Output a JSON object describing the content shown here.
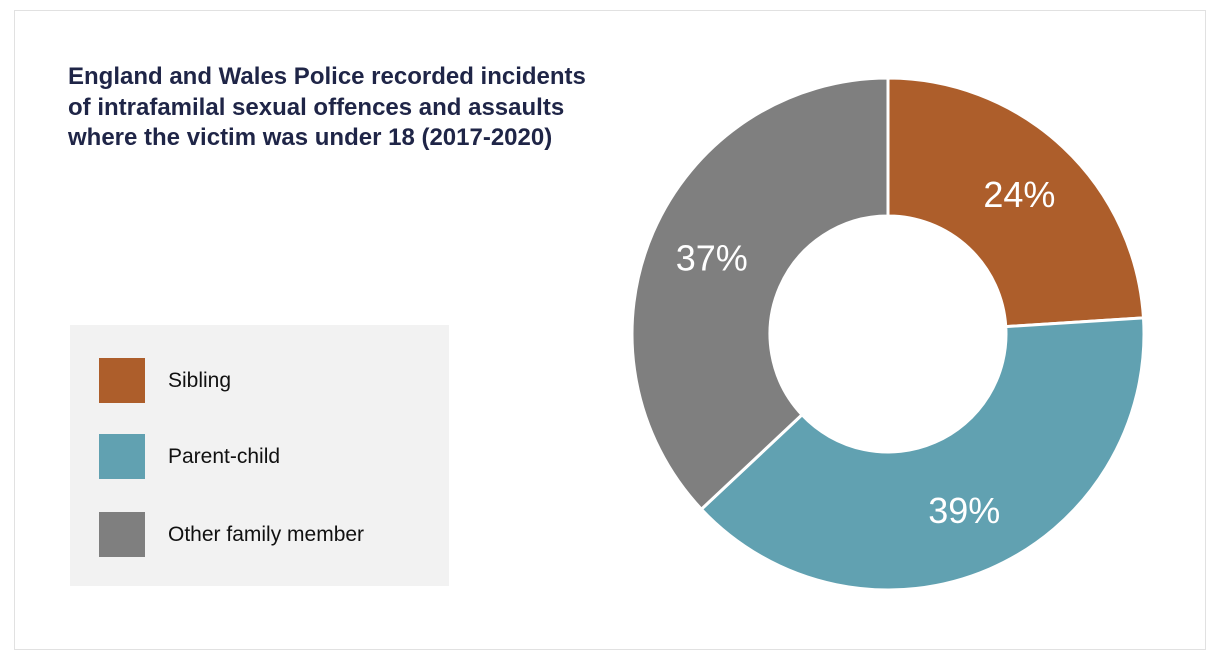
{
  "chart_data": {
    "type": "pie",
    "title": "England and Wales Police recorded incidents of intrafamilal sexual offences and assaults where the victim was under 18 (2017-2020)",
    "categories": [
      "Sibling",
      "Parent-child",
      "Other family member"
    ],
    "values": [
      24,
      39,
      37
    ],
    "labels": [
      "24%",
      "39%",
      "37%"
    ],
    "colors": [
      "#ad5e2b",
      "#61a1b1",
      "#7f7f7f"
    ],
    "donut": true,
    "legend": "left"
  }
}
